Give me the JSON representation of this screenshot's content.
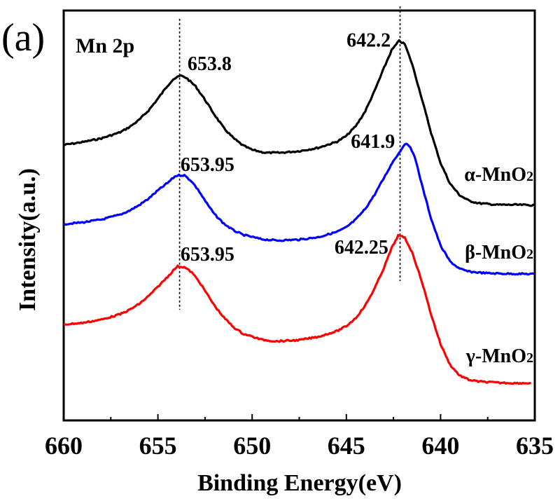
{
  "panel_label": "(a)",
  "chart_data": {
    "type": "line",
    "title": "Mn 2p",
    "xlabel": "Binding Energy(eV)",
    "ylabel": "Intensity(a.u.)",
    "xlim": [
      660,
      635
    ],
    "ylim": [
      0,
      100
    ],
    "x_reversed": true,
    "xticks": [
      660,
      655,
      650,
      645,
      640,
      635
    ],
    "xtick_labels": [
      "660",
      "655",
      "650",
      "645",
      "640",
      "635"
    ],
    "x_minor_ticks": [
      657.5,
      652.5,
      647.5,
      642.5,
      637.5
    ],
    "yticks": [],
    "grid": false,
    "legend": "none (labels placed inline near curve tails on right)",
    "series": [
      {
        "name": "α-MnO2",
        "label": "α-MnO",
        "label_sub": "2",
        "color": "#000000",
        "points": [
          [
            660.0,
            67.2
          ],
          [
            659.0,
            67.9
          ],
          [
            658.0,
            68.8
          ],
          [
            657.0,
            70.3
          ],
          [
            656.5,
            71.6
          ],
          [
            656.0,
            73.3
          ],
          [
            655.5,
            75.6
          ],
          [
            655.0,
            78.5
          ],
          [
            654.5,
            81.6
          ],
          [
            654.2,
            83.2
          ],
          [
            653.8,
            84.1
          ],
          [
            653.5,
            83.6
          ],
          [
            653.0,
            81.5
          ],
          [
            652.5,
            78.2
          ],
          [
            652.0,
            74.6
          ],
          [
            651.5,
            71.3
          ],
          [
            651.0,
            68.9
          ],
          [
            650.5,
            67.1
          ],
          [
            650.0,
            66.0
          ],
          [
            649.3,
            65.3
          ],
          [
            648.5,
            65.3
          ],
          [
            647.5,
            65.7
          ],
          [
            646.5,
            66.5
          ],
          [
            645.5,
            68.0
          ],
          [
            645.0,
            69.4
          ],
          [
            644.5,
            71.8
          ],
          [
            644.0,
            75.4
          ],
          [
            643.5,
            80.4
          ],
          [
            643.0,
            86.0
          ],
          [
            642.6,
            90.3
          ],
          [
            642.2,
            92.6
          ],
          [
            641.9,
            91.8
          ],
          [
            641.5,
            86.8
          ],
          [
            641.0,
            78.6
          ],
          [
            640.5,
            70.1
          ],
          [
            640.0,
            62.8
          ],
          [
            639.5,
            57.8
          ],
          [
            639.0,
            55.0
          ],
          [
            638.5,
            53.6
          ],
          [
            638.0,
            53.0
          ],
          [
            637.0,
            52.6
          ],
          [
            636.0,
            52.6
          ],
          [
            635.0,
            52.5
          ]
        ]
      },
      {
        "name": "β-MnO2",
        "label": "β-MnO",
        "label_sub": "2",
        "color": "#0000ff",
        "points": [
          [
            660.0,
            47.9
          ],
          [
            659.0,
            48.3
          ],
          [
            658.0,
            49.0
          ],
          [
            657.0,
            50.2
          ],
          [
            656.5,
            51.2
          ],
          [
            656.0,
            52.5
          ],
          [
            655.5,
            54.1
          ],
          [
            655.0,
            56.1
          ],
          [
            654.5,
            57.9
          ],
          [
            654.1,
            59.5
          ],
          [
            653.95,
            59.8
          ],
          [
            653.6,
            59.8
          ],
          [
            653.2,
            58.3
          ],
          [
            652.8,
            55.8
          ],
          [
            652.4,
            52.9
          ],
          [
            652.0,
            50.3
          ],
          [
            651.5,
            48.0
          ],
          [
            651.0,
            46.4
          ],
          [
            650.5,
            45.3
          ],
          [
            649.5,
            44.2
          ],
          [
            648.7,
            43.9
          ],
          [
            647.5,
            44.1
          ],
          [
            646.5,
            44.7
          ],
          [
            645.5,
            46.0
          ],
          [
            645.0,
            47.1
          ],
          [
            644.5,
            49.0
          ],
          [
            644.0,
            51.6
          ],
          [
            643.5,
            55.1
          ],
          [
            643.0,
            59.2
          ],
          [
            642.5,
            63.4
          ],
          [
            642.2,
            65.3
          ],
          [
            641.9,
            67.5
          ],
          [
            641.6,
            66.8
          ],
          [
            641.3,
            63.2
          ],
          [
            641.0,
            57.6
          ],
          [
            640.5,
            49.2
          ],
          [
            640.0,
            42.6
          ],
          [
            639.5,
            38.8
          ],
          [
            639.0,
            37.0
          ],
          [
            638.5,
            36.3
          ],
          [
            637.5,
            35.9
          ],
          [
            636.5,
            35.8
          ],
          [
            635.0,
            35.7
          ]
        ]
      },
      {
        "name": "γ-MnO2",
        "label": "γ-MnO",
        "label_sub": "2",
        "color": "#ff0000",
        "points": [
          [
            660.0,
            23.4
          ],
          [
            659.0,
            23.8
          ],
          [
            658.0,
            24.6
          ],
          [
            657.0,
            25.9
          ],
          [
            656.5,
            27.0
          ],
          [
            656.0,
            28.4
          ],
          [
            655.5,
            30.3
          ],
          [
            655.0,
            32.6
          ],
          [
            654.5,
            35.0
          ],
          [
            654.1,
            37.0
          ],
          [
            653.95,
            37.6
          ],
          [
            653.6,
            37.4
          ],
          [
            653.2,
            36.1
          ],
          [
            652.8,
            33.8
          ],
          [
            652.4,
            30.9
          ],
          [
            652.0,
            28.0
          ],
          [
            651.5,
            25.1
          ],
          [
            651.0,
            22.8
          ],
          [
            650.5,
            21.2
          ],
          [
            649.5,
            19.7
          ],
          [
            648.7,
            19.3
          ],
          [
            647.5,
            19.6
          ],
          [
            646.5,
            20.4
          ],
          [
            645.5,
            21.8
          ],
          [
            645.0,
            23.0
          ],
          [
            644.5,
            25.0
          ],
          [
            644.0,
            28.0
          ],
          [
            643.5,
            32.2
          ],
          [
            643.0,
            37.3
          ],
          [
            642.6,
            42.0
          ],
          [
            642.25,
            45.1
          ],
          [
            641.9,
            44.6
          ],
          [
            641.5,
            40.9
          ],
          [
            641.0,
            34.0
          ],
          [
            640.5,
            25.8
          ],
          [
            640.0,
            18.6
          ],
          [
            639.5,
            13.6
          ],
          [
            639.0,
            11.0
          ],
          [
            638.5,
            9.9
          ],
          [
            638.0,
            9.5
          ],
          [
            637.0,
            9.2
          ],
          [
            636.0,
            9.1
          ],
          [
            635.2,
            9.1
          ]
        ]
      }
    ],
    "reference_lines": [
      {
        "x": 653.85,
        "y_range": [
          27,
          98
        ],
        "style": "dotted"
      },
      {
        "x": 642.15,
        "y_range": [
          34,
          101
        ],
        "style": "dotted"
      }
    ],
    "annotations": [
      {
        "text": "653.8",
        "series": "α-MnO2",
        "x": 653.8,
        "y": 84.1
      },
      {
        "text": "642.2",
        "series": "α-MnO2",
        "x": 642.2,
        "y": 92.6
      },
      {
        "text": "653.95",
        "series": "β-MnO2",
        "x": 653.95,
        "y": 59.8
      },
      {
        "text": "641.9",
        "series": "β-MnO2",
        "x": 641.9,
        "y": 67.5
      },
      {
        "text": "653.95",
        "series": "γ-MnO2",
        "x": 653.95,
        "y": 37.6
      },
      {
        "text": "642.25",
        "series": "γ-MnO2",
        "x": 642.25,
        "y": 45.1
      }
    ]
  }
}
